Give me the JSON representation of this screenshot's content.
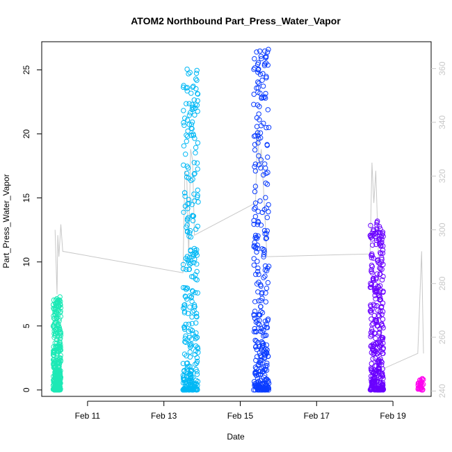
{
  "chart_data": {
    "type": "scatter",
    "title": "ATOM2 Northbound Part_Press_Water_Vapor",
    "xlabel": "Date",
    "ylabel": "Part_Press_Water_Vapor",
    "x_ticks": [
      "Feb 11",
      "Feb 13",
      "Feb 15",
      "Feb 17",
      "Feb 19"
    ],
    "y_ticks": [
      "0",
      "5",
      "10",
      "15",
      "20",
      "25"
    ],
    "y_right_ticks": [
      "240",
      "260",
      "280",
      "300",
      "320",
      "340",
      "360"
    ],
    "xlim_day": [
      9.8,
      20.0
    ],
    "ylim": [
      -0.5,
      27.2
    ],
    "ylim_right": [
      238,
      370
    ],
    "grid": false,
    "series": [
      {
        "color": "#1de9b6",
        "day_range": [
          10.1,
          10.3
        ],
        "y_max": 7.3
      },
      {
        "color": "#00b8f5",
        "day_range": [
          13.5,
          13.9
        ],
        "y_max": 25.3
      },
      {
        "color": "#0a3cff",
        "day_range": [
          15.35,
          15.75
        ],
        "y_max": 26.7
      },
      {
        "color": "#6a00ff",
        "day_range": [
          18.4,
          18.75
        ],
        "y_max": 13.2
      },
      {
        "color": "#ff00ee",
        "day_range": [
          19.65,
          19.8
        ],
        "y_max": 0.9
      }
    ],
    "secondary_line": {
      "color": "#c8c8c8",
      "points": [
        [
          10.15,
          300
        ],
        [
          10.2,
          276
        ],
        [
          10.22,
          298
        ],
        [
          10.25,
          290
        ],
        [
          10.3,
          302
        ],
        [
          10.35,
          292
        ],
        [
          13.5,
          284
        ],
        [
          13.55,
          322
        ],
        [
          13.6,
          320
        ],
        [
          13.65,
          290
        ],
        [
          13.7,
          330
        ],
        [
          13.75,
          326
        ],
        [
          13.8,
          298
        ],
        [
          15.4,
          310
        ],
        [
          15.45,
          338
        ],
        [
          15.5,
          324
        ],
        [
          15.55,
          330
        ],
        [
          15.6,
          318
        ],
        [
          15.7,
          290
        ],
        [
          18.4,
          291
        ],
        [
          18.45,
          325
        ],
        [
          18.5,
          310
        ],
        [
          18.55,
          322
        ],
        [
          18.6,
          300
        ],
        [
          18.7,
          248
        ],
        [
          19.65,
          254
        ],
        [
          19.75,
          292
        ],
        [
          19.8,
          254
        ]
      ]
    }
  }
}
